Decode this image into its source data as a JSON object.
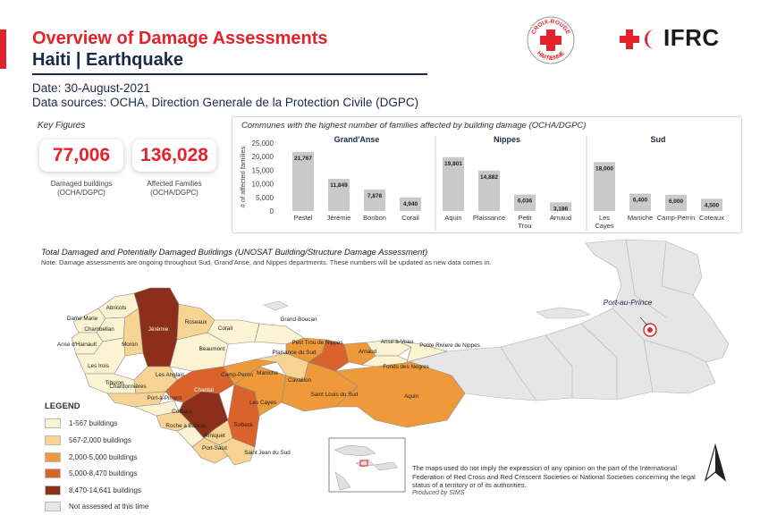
{
  "header": {
    "title": "Overview of Damage Assessments",
    "subtitle": "Haiti | Earthquake",
    "date": "Date: 30-August-2021",
    "sources": "Data sources: OCHA, Direction Generale de la Protection Civile (DGPC)"
  },
  "logos": {
    "croix_rouge_top": "CROIX-ROUGE",
    "croix_rouge_bottom": "HAITIENNE",
    "ifrc": "IFRC"
  },
  "key_figures": {
    "title": "Key Figures",
    "damaged": {
      "value": "77,006",
      "label_line1": "Damaged buildings",
      "label_line2": "(OCHA/DGPC)"
    },
    "affected": {
      "value": "136,028",
      "label_line1": "Affected Families",
      "label_line2": "(OCHA/DGPC)"
    }
  },
  "chart_data": {
    "type": "bar",
    "title": "Communes with the highest number of families affected by building damage (OCHA/DGPC)",
    "ylabel": "# of affected families",
    "ylim": [
      0,
      25000
    ],
    "yticks": [
      "25,000",
      "20,000",
      "15,000",
      "10,000",
      "5,000",
      "0"
    ],
    "groups": [
      {
        "name": "Grand'Anse",
        "categories": [
          "Pestel",
          "Jérémie",
          "Bonbon",
          "Corail"
        ],
        "values": [
          21767,
          11849,
          7878,
          4940
        ],
        "labels": [
          "21,767",
          "11,849",
          "7,878",
          "4,940"
        ]
      },
      {
        "name": "Nippes",
        "categories": [
          "Aquin",
          "Plaissance",
          "Petit Trou",
          "Arnaud"
        ],
        "values": [
          19801,
          14882,
          6036,
          3186
        ],
        "labels": [
          "19,801",
          "14,882",
          "6,036",
          "3,186"
        ]
      },
      {
        "name": "Sud",
        "categories": [
          "Les Cayes",
          "Maniche",
          "Camp-Perrin",
          "Coteaux"
        ],
        "values": [
          18000,
          6400,
          6000,
          4500
        ],
        "labels": [
          "18,000",
          "6,400",
          "6,000",
          "4,500"
        ]
      }
    ]
  },
  "damage_section": {
    "title": "Total Damaged and Potentially Damaged Buildings (UNOSAT Building/Structure Damage Assessment)",
    "note": "Note: Damage assessments are ongoing throughout Sud, Grand'Anse, and Nippes departments. These numbers will be updated as new data comes in."
  },
  "legend": {
    "title": "LEGEND",
    "items": [
      {
        "label": "1-567 buildings",
        "color": "#fbf3d1"
      },
      {
        "label": "567-2,000 buildings",
        "color": "#f7d494"
      },
      {
        "label": "2,000-5,000 buildings",
        "color": "#ee9a3a"
      },
      {
        "label": "5,000-8,470 buildings",
        "color": "#d9632a"
      },
      {
        "label": "8,470-14,641 buildings",
        "color": "#8c2e1a"
      },
      {
        "label": "Not assessed at this time",
        "color": "#e6e6e6"
      }
    ]
  },
  "map": {
    "capital": "Port-au-Prince",
    "communes": [
      "Abricots",
      "Dame Marie",
      "Chambellan",
      "Anse d'Hainault",
      "Moron",
      "Les Irois",
      "Tiburon",
      "Jérémie",
      "Roseaux",
      "Corail",
      "Beaumont",
      "Grand-Boucan",
      "Petit Trou de Nippes",
      "Anse-à-Veau",
      "Petite Riviere de Nippes",
      "Plaisance du Sud",
      "Arnaud",
      "Fonds des Negres",
      "Les Anglais",
      "Chardonnières",
      "Port-à-Piment",
      "Camp-Perrin",
      "Maniche",
      "Cavaillon",
      "Saint Louis du Sud",
      "Aquin",
      "Chantal",
      "Les Cayes",
      "Coteaux",
      "Roche a Bateau",
      "Torbeck",
      "Arniquet",
      "Port-Salut",
      "Saint Jean du Sud"
    ]
  },
  "footer": {
    "disclaimer": "The maps used do not imply the expression of any opinion on the part of the International Federation of Red Cross and Red Crescent Societies or National Societies concerning the legal status of a territory or of its authorities.",
    "produced": "Produced by SIMS"
  }
}
